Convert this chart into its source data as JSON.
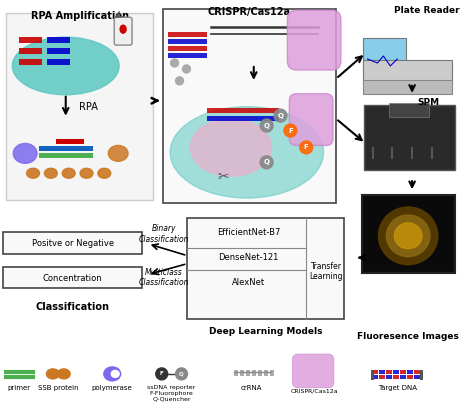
{
  "bg_color": "#ffffff",
  "sections": {
    "rpa_title": "RPA Amplification",
    "crispr_title": "CRISPR/Cas12a",
    "plate_reader_title": "Plate Reader",
    "spm_title": "SPM",
    "fluoresence_title": "Fluoresence Images",
    "classification_title": "Classification",
    "deep_learning_title": "Deep Learning Models"
  },
  "dl_models": [
    "EfficientNet-B7",
    "DenseNet-121",
    "AlexNet"
  ],
  "dl_right_label": "Transfer\nLearning",
  "output_labels": [
    "Positve or Negative",
    "Concentration"
  ],
  "classification_labels": [
    "Binary\nClassification",
    "Multiclass\nClassification"
  ],
  "legend_items": [
    "primer",
    "SSB protein",
    "polymerase",
    "ssDNA reporter\nF-Fluorophore\nQ-Quencher",
    "crRNA",
    "CRISPR/Cas12a",
    "Target DNA"
  ],
  "legend_colors": [
    "#4caf50",
    "#cc7722",
    "#7B68EE",
    "#333333",
    "#888888",
    "#DDA0DD",
    "#cc0000"
  ],
  "rpa_label": "RPA",
  "box_border": "#000000",
  "arrow_color": "#000000"
}
